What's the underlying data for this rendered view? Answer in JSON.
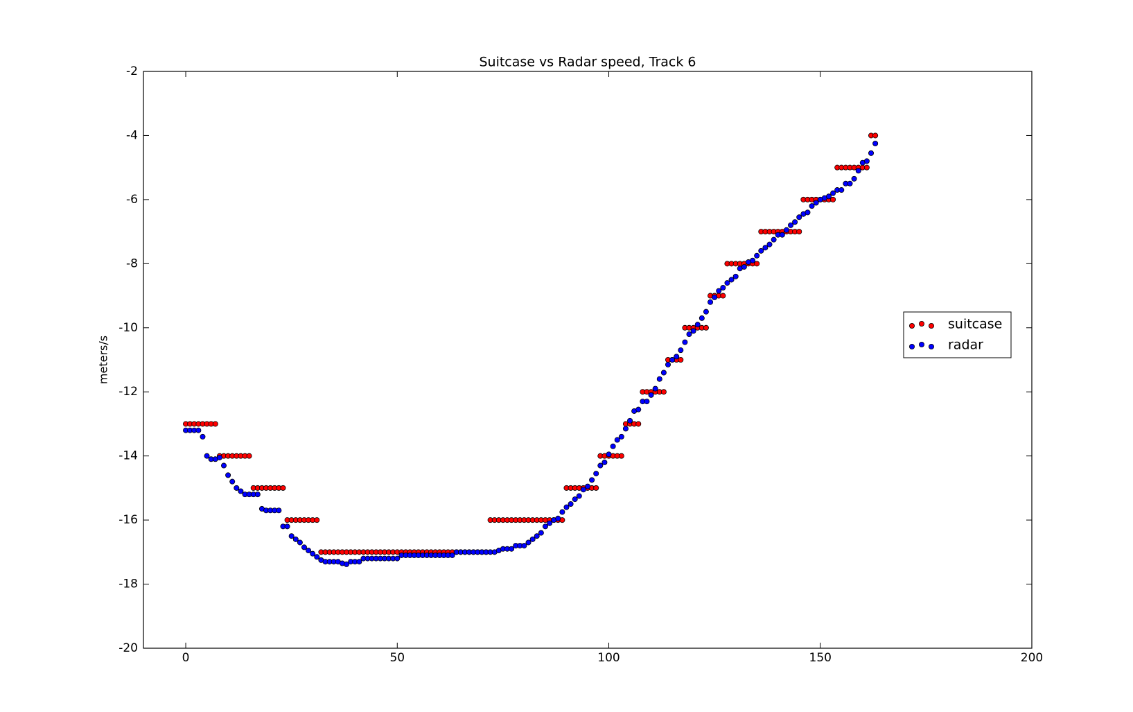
{
  "chart_data": {
    "type": "scatter",
    "title": "Suitcase vs Radar speed, Track 6",
    "y_label": "meters/s",
    "x": [
      0,
      1,
      2,
      3,
      4,
      5,
      6,
      7,
      8,
      9,
      10,
      11,
      12,
      13,
      14,
      15,
      16,
      17,
      18,
      19,
      20,
      21,
      22,
      23,
      24,
      25,
      26,
      27,
      28,
      29,
      30,
      31,
      32,
      33,
      34,
      35,
      36,
      37,
      38,
      39,
      40,
      41,
      42,
      43,
      44,
      45,
      46,
      47,
      48,
      49,
      50,
      51,
      52,
      53,
      54,
      55,
      56,
      57,
      58,
      59,
      60,
      61,
      62,
      63,
      64,
      65,
      66,
      67,
      68,
      69,
      70,
      71,
      72,
      73,
      74,
      75,
      76,
      77,
      78,
      79,
      80,
      81,
      82,
      83,
      84,
      85,
      86,
      87,
      88,
      89,
      90,
      91,
      92,
      93,
      94,
      95,
      96,
      97,
      98,
      99,
      100,
      101,
      102,
      103,
      104,
      105,
      106,
      107,
      108,
      109,
      110,
      111,
      112,
      113,
      114,
      115,
      116,
      117,
      118,
      119,
      120,
      121,
      122,
      123,
      124,
      125,
      126,
      127,
      128,
      129,
      130,
      131,
      132,
      133,
      134,
      135,
      136,
      137,
      138,
      139,
      140,
      141,
      142,
      143,
      144,
      145,
      146,
      147,
      148,
      149,
      150,
      151,
      152,
      153,
      154,
      155,
      156,
      157,
      158,
      159,
      160,
      161,
      162,
      163
    ],
    "series": [
      {
        "name": "suitcase",
        "color": "#ff0000",
        "values": [
          -13,
          -13,
          -13,
          -13,
          -13,
          -13,
          -13,
          -13,
          -14,
          -14,
          -14,
          -14,
          -14,
          -14,
          -14,
          -14,
          -15,
          -15,
          -15,
          -15,
          -15,
          -15,
          -15,
          -15,
          -16,
          -16,
          -16,
          -16,
          -16,
          -16,
          -16,
          -16,
          -17,
          -17,
          -17,
          -17,
          -17,
          -17,
          -17,
          -17,
          -17,
          -17,
          -17,
          -17,
          -17,
          -17,
          -17,
          -17,
          -17,
          -17,
          -17,
          -17,
          -17,
          -17,
          -17,
          -17,
          -17,
          -17,
          -17,
          -17,
          -17,
          -17,
          -17,
          -17,
          -17,
          -17,
          -17,
          -17,
          -17,
          -17,
          -17,
          -17,
          -16,
          -16,
          -16,
          -16,
          -16,
          -16,
          -16,
          -16,
          -16,
          -16,
          -16,
          -16,
          -16,
          -16,
          -16,
          -16,
          -16,
          -16,
          -15,
          -15,
          -15,
          -15,
          -15,
          -15,
          -15,
          -15,
          -14,
          -14,
          -14,
          -14,
          -14,
          -14,
          -13,
          -13,
          -13,
          -13,
          -12,
          -12,
          -12,
          -12,
          -12,
          -12,
          -11,
          -11,
          -11,
          -11,
          -10,
          -10,
          -10,
          -10,
          -10,
          -10,
          -9,
          -9,
          -9,
          -9,
          -8,
          -8,
          -8,
          -8,
          -8,
          -8,
          -8,
          -8,
          -7,
          -7,
          -7,
          -7,
          -7,
          -7,
          -7,
          -7,
          -7,
          -7,
          -6,
          -6,
          -6,
          -6,
          -6,
          -6,
          -6,
          -6,
          -5,
          -5,
          -5,
          -5,
          -5,
          -5,
          -5,
          -5,
          -4,
          -4
        ]
      },
      {
        "name": "radar",
        "color": "#0000ff",
        "values": [
          -13.2,
          -13.2,
          -13.2,
          -13.2,
          -13.4,
          -14.0,
          -14.1,
          -14.1,
          -14.05,
          -14.3,
          -14.6,
          -14.8,
          -15.0,
          -15.1,
          -15.2,
          -15.2,
          -15.2,
          -15.2,
          -15.65,
          -15.7,
          -15.7,
          -15.7,
          -15.7,
          -16.2,
          -16.2,
          -16.5,
          -16.6,
          -16.7,
          -16.85,
          -16.95,
          -17.05,
          -17.15,
          -17.25,
          -17.3,
          -17.3,
          -17.3,
          -17.3,
          -17.35,
          -17.38,
          -17.3,
          -17.3,
          -17.3,
          -17.2,
          -17.2,
          -17.2,
          -17.2,
          -17.2,
          -17.2,
          -17.2,
          -17.2,
          -17.2,
          -17.1,
          -17.1,
          -17.1,
          -17.1,
          -17.1,
          -17.1,
          -17.1,
          -17.1,
          -17.1,
          -17.1,
          -17.1,
          -17.1,
          -17.1,
          -17.0,
          -17.0,
          -17.0,
          -17.0,
          -17.0,
          -17.0,
          -17.0,
          -17.0,
          -17.0,
          -17.0,
          -16.95,
          -16.9,
          -16.9,
          -16.9,
          -16.8,
          -16.8,
          -16.8,
          -16.7,
          -16.6,
          -16.5,
          -16.4,
          -16.2,
          -16.1,
          -16.0,
          -15.95,
          -15.75,
          -15.6,
          -15.5,
          -15.35,
          -15.25,
          -15.05,
          -14.95,
          -14.75,
          -14.55,
          -14.3,
          -14.2,
          -13.95,
          -13.7,
          -13.5,
          -13.4,
          -13.15,
          -12.9,
          -12.6,
          -12.55,
          -12.3,
          -12.3,
          -12.1,
          -11.9,
          -11.6,
          -11.4,
          -11.15,
          -11.0,
          -10.9,
          -10.7,
          -10.45,
          -10.2,
          -10.1,
          -9.9,
          -9.7,
          -9.5,
          -9.2,
          -9.05,
          -8.85,
          -8.75,
          -8.6,
          -8.5,
          -8.4,
          -8.15,
          -8.1,
          -7.95,
          -7.9,
          -7.75,
          -7.6,
          -7.5,
          -7.4,
          -7.25,
          -7.1,
          -7.1,
          -6.95,
          -6.8,
          -6.7,
          -6.55,
          -6.45,
          -6.4,
          -6.2,
          -6.1,
          -6.0,
          -5.95,
          -5.9,
          -5.8,
          -5.7,
          -5.7,
          -5.5,
          -5.5,
          -5.35,
          -5.1,
          -4.85,
          -4.8,
          -4.55,
          -4.25
        ]
      }
    ],
    "xlim": [
      -10,
      200
    ],
    "xticks": [
      0,
      50,
      100,
      150,
      200
    ],
    "ylim": [
      -20,
      -2
    ],
    "yticks": [
      -20,
      -18,
      -16,
      -14,
      -12,
      -10,
      -8,
      -6,
      -4,
      -2
    ],
    "legend": "center right"
  }
}
